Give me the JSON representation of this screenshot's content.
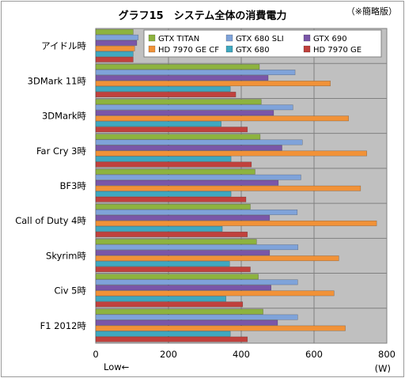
{
  "chart_data": {
    "type": "bar",
    "orientation": "horizontal",
    "title": "グラフ15　システム全体の消費電力",
    "note": "（※簡略版）",
    "unit_label": "(W)",
    "direction_label": "Low←",
    "xlim": [
      0,
      800
    ],
    "x_ticks": [
      "0",
      "200",
      "400",
      "600",
      "800"
    ],
    "grid": true,
    "legend_position": "top-right",
    "categories": [
      "アイドル時",
      "3DMark 11時",
      "3DMark時",
      "Far Cry 3時",
      "BF3時",
      "Call of Duty 4時",
      "Skyrim時",
      "Civ 5時",
      "F1 2012時"
    ],
    "series": [
      {
        "name": "GTX TITAN",
        "color": "#8db33f",
        "values": [
          103,
          450,
          455,
          452,
          438,
          425,
          442,
          447,
          460
        ]
      },
      {
        "name": "GTX 680 SLI",
        "color": "#7fa3da",
        "values": [
          117,
          548,
          542,
          568,
          564,
          554,
          556,
          555,
          555
        ]
      },
      {
        "name": "GTX 690",
        "color": "#7a56a8",
        "values": [
          113,
          474,
          489,
          512,
          502,
          478,
          478,
          482,
          500
        ]
      },
      {
        "name": "HD 7970 GE CF",
        "color": "#f19238",
        "values": [
          107,
          645,
          695,
          745,
          728,
          772,
          668,
          655,
          686
        ]
      },
      {
        "name": "GTX 680",
        "color": "#3fa8c0",
        "values": [
          103,
          370,
          345,
          372,
          372,
          348,
          368,
          358,
          370
        ]
      },
      {
        "name": "HD 7970 GE",
        "color": "#c0413d",
        "values": [
          103,
          385,
          417,
          428,
          413,
          417,
          425,
          404,
          417
        ]
      }
    ]
  }
}
